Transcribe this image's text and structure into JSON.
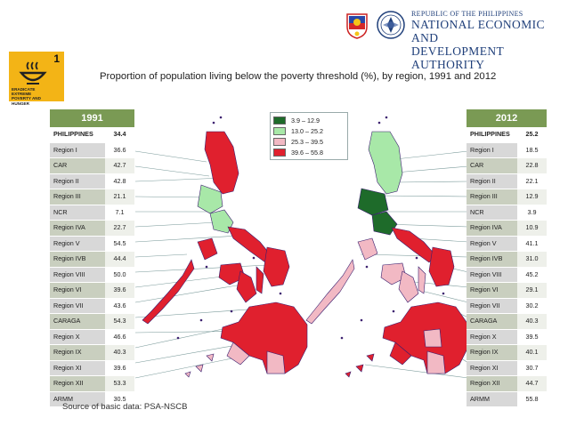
{
  "header": {
    "republic": "REPUBLIC OF THE PHILIPPINES",
    "agency_line1": "NATIONAL ECONOMIC AND",
    "agency_line2": "DEVELOPMENT AUTHORITY"
  },
  "goal": {
    "number": "1",
    "label": "ERADICATE EXTREME POVERTY AND HUNGER",
    "color": "#f3b416"
  },
  "title": "Proportion of population living below the poverty threshold (%), by region, 1991 and 2012",
  "legend": [
    {
      "label": "3.9 – 12.9",
      "color": "#1e6b2a"
    },
    {
      "label": "13.0 – 25.2",
      "color": "#a8e8a8"
    },
    {
      "label": "25.3 – 39.5",
      "color": "#f2b9c4"
    },
    {
      "label": "39.6 – 55.8",
      "color": "#e0202e"
    }
  ],
  "table_1991": {
    "header": "1991",
    "rows": [
      {
        "region": "PHILIPPINES",
        "value": "34.4"
      },
      {
        "region": "Region I",
        "value": "36.6"
      },
      {
        "region": "CAR",
        "value": "42.7"
      },
      {
        "region": "Region II",
        "value": "42.8"
      },
      {
        "region": "Region III",
        "value": "21.1"
      },
      {
        "region": "NCR",
        "value": "7.1"
      },
      {
        "region": "Region IVA",
        "value": "22.7"
      },
      {
        "region": "Region V",
        "value": "54.5"
      },
      {
        "region": "Region IVB",
        "value": "44.4"
      },
      {
        "region": "Region VIII",
        "value": "50.0"
      },
      {
        "region": "Region VI",
        "value": "39.6"
      },
      {
        "region": "Region VII",
        "value": "43.6"
      },
      {
        "region": "CARAGA",
        "value": "54.3"
      },
      {
        "region": "Region X",
        "value": "46.6"
      },
      {
        "region": "Region IX",
        "value": "40.3"
      },
      {
        "region": "Region XI",
        "value": "39.6"
      },
      {
        "region": "Region XII",
        "value": "53.3"
      },
      {
        "region": "ARMM",
        "value": "30.5"
      }
    ]
  },
  "table_2012": {
    "header": "2012",
    "rows": [
      {
        "region": "PHILIPPINES",
        "value": "25.2"
      },
      {
        "region": "Region I",
        "value": "18.5"
      },
      {
        "region": "CAR",
        "value": "22.8"
      },
      {
        "region": "Region II",
        "value": "22.1"
      },
      {
        "region": "Region III",
        "value": "12.9"
      },
      {
        "region": "NCR",
        "value": "3.9"
      },
      {
        "region": "Region IVA",
        "value": "10.9"
      },
      {
        "region": "Region V",
        "value": "41.1"
      },
      {
        "region": "Region IVB",
        "value": "31.0"
      },
      {
        "region": "Region VIII",
        "value": "45.2"
      },
      {
        "region": "Region VI",
        "value": "29.1"
      },
      {
        "region": "Region VII",
        "value": "30.2"
      },
      {
        "region": "CARAGA",
        "value": "40.3"
      },
      {
        "region": "Region X",
        "value": "39.5"
      },
      {
        "region": "Region IX",
        "value": "40.1"
      },
      {
        "region": "Region XI",
        "value": "30.7"
      },
      {
        "region": "Region XII",
        "value": "44.7"
      },
      {
        "region": "ARMM",
        "value": "55.8"
      }
    ]
  },
  "source": "Source of basic data: PSA-NSCB",
  "colors": {
    "table_header": "#7a9a54",
    "title_text": "#1f3f7a"
  }
}
